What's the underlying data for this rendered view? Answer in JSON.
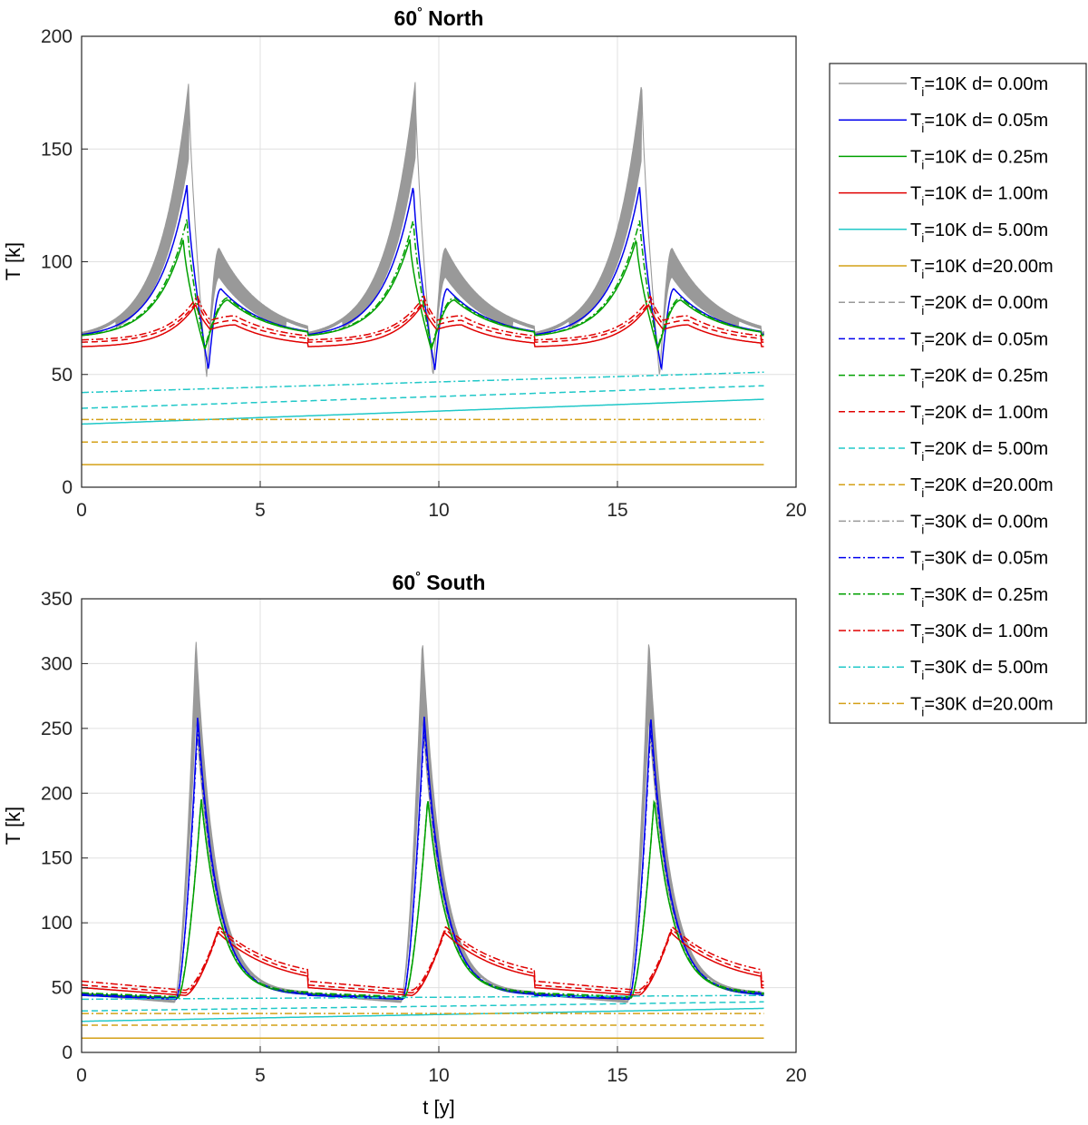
{
  "figure": {
    "xlabel": "t [y]",
    "ylabel": "T [k]"
  },
  "legend": {
    "location": "right",
    "entries": [
      {
        "ti": "i",
        "text_pre": "T",
        "text_post": "=10K d= 0.00m",
        "color": "#999999",
        "style": "solid"
      },
      {
        "ti": "i",
        "text_pre": "T",
        "text_post": "=10K d= 0.05m",
        "color": "#0000ee",
        "style": "solid"
      },
      {
        "ti": "i",
        "text_pre": "T",
        "text_post": "=10K d= 0.25m",
        "color": "#00a000",
        "style": "solid"
      },
      {
        "ti": "i",
        "text_pre": "T",
        "text_post": "=10K d= 1.00m",
        "color": "#e00000",
        "style": "solid"
      },
      {
        "ti": "i",
        "text_pre": "T",
        "text_post": "=10K d= 5.00m",
        "color": "#20c8c8",
        "style": "solid"
      },
      {
        "ti": "i",
        "text_pre": "T",
        "text_post": "=10K d=20.00m",
        "color": "#d4a017",
        "style": "solid"
      },
      {
        "ti": "i",
        "text_pre": "T",
        "text_post": "=20K d= 0.00m",
        "color": "#999999",
        "style": "dashed"
      },
      {
        "ti": "i",
        "text_pre": "T",
        "text_post": "=20K d= 0.05m",
        "color": "#0000ee",
        "style": "dashed"
      },
      {
        "ti": "i",
        "text_pre": "T",
        "text_post": "=20K d= 0.25m",
        "color": "#00a000",
        "style": "dashed"
      },
      {
        "ti": "i",
        "text_pre": "T",
        "text_post": "=20K d= 1.00m",
        "color": "#e00000",
        "style": "dashed"
      },
      {
        "ti": "i",
        "text_pre": "T",
        "text_post": "=20K d= 5.00m",
        "color": "#20c8c8",
        "style": "dashed"
      },
      {
        "ti": "i",
        "text_pre": "T",
        "text_post": "=20K d=20.00m",
        "color": "#d4a017",
        "style": "dashed"
      },
      {
        "ti": "i",
        "text_pre": "T",
        "text_post": "=30K d= 0.00m",
        "color": "#999999",
        "style": "dashdot"
      },
      {
        "ti": "i",
        "text_pre": "T",
        "text_post": "=30K d= 0.05m",
        "color": "#0000ee",
        "style": "dashdot"
      },
      {
        "ti": "i",
        "text_pre": "T",
        "text_post": "=30K d= 0.25m",
        "color": "#00a000",
        "style": "dashdot"
      },
      {
        "ti": "i",
        "text_pre": "T",
        "text_post": "=30K d= 1.00m",
        "color": "#e00000",
        "style": "dashdot"
      },
      {
        "ti": "i",
        "text_pre": "T",
        "text_post": "=30K d= 5.00m",
        "color": "#20c8c8",
        "style": "dashdot"
      },
      {
        "ti": "i",
        "text_pre": "T",
        "text_post": "=30K d=20.00m",
        "color": "#d4a017",
        "style": "dashdot"
      }
    ]
  },
  "chart_data": [
    {
      "type": "line",
      "title": "60° North",
      "title_main": "60",
      "title_deg": "°",
      "title_rest": " North",
      "xlabel": "",
      "ylabel": "T [k]",
      "xlim": [
        0,
        20
      ],
      "ylim": [
        0,
        200
      ],
      "xticks": [
        0,
        5,
        10,
        15,
        20
      ],
      "yticks": [
        0,
        50,
        100,
        150,
        200
      ],
      "grid": true,
      "period": 6.34,
      "t_end": 19.1,
      "surface_band": {
        "color": "#999999",
        "peaks": [
          [
            3.0,
            180
          ],
          [
            3.85,
            106
          ]
        ],
        "trough": [
          3.5,
          49
        ],
        "base": 66
      },
      "series": [
        {
          "name": "Ti=10K d=0.05m",
          "color": "#0000ee",
          "style": "solid",
          "peaks": [
            [
              2.95,
              134
            ],
            [
              3.9,
              88
            ]
          ],
          "trough": [
            3.55,
            52
          ],
          "base": 66
        },
        {
          "name": "Ti=10K d=0.25m",
          "color": "#00a000",
          "style": "solid",
          "peaks": [
            [
              2.85,
              110
            ],
            [
              4.1,
              83
            ]
          ],
          "trough": [
            3.45,
            61
          ],
          "base": 66
        },
        {
          "name": "Ti=10K d=1.00m",
          "color": "#e00000",
          "style": "solid",
          "peaks": [
            [
              3.2,
              81
            ],
            [
              4.3,
              72
            ]
          ],
          "trough": [
            3.6,
            70
          ],
          "base": 62
        },
        {
          "name": "Ti=10K d=5.00m",
          "color": "#20c8c8",
          "style": "solid",
          "start": 28,
          "end": 39
        },
        {
          "name": "Ti=10K d=20.00m",
          "color": "#d4a017",
          "style": "solid",
          "start": 10,
          "end": 10
        },
        {
          "name": "Ti=20K d=1.00m",
          "color": "#e00000",
          "style": "dashed",
          "peaks": [
            [
              3.25,
              83
            ],
            [
              4.3,
              74
            ]
          ],
          "trough": [
            3.6,
            72
          ],
          "base": 64
        },
        {
          "name": "Ti=20K d=5.00m",
          "color": "#20c8c8",
          "style": "dashed",
          "start": 35,
          "end": 45
        },
        {
          "name": "Ti=20K d=20.00m",
          "color": "#d4a017",
          "style": "dashed",
          "start": 20,
          "end": 20
        },
        {
          "name": "Ti=30K d=0.25m",
          "color": "#00a000",
          "style": "dashdot",
          "peaks": [
            [
              2.95,
              119
            ],
            [
              4.1,
              84
            ]
          ],
          "trough": [
            3.45,
            62
          ],
          "base": 66
        },
        {
          "name": "Ti=30K d=1.00m",
          "color": "#e00000",
          "style": "dashdot",
          "peaks": [
            [
              3.25,
              85
            ],
            [
              4.3,
              76
            ]
          ],
          "trough": [
            3.6,
            74
          ],
          "base": 65
        },
        {
          "name": "Ti=30K d=5.00m",
          "color": "#20c8c8",
          "style": "dashdot",
          "start": 42,
          "end": 51
        },
        {
          "name": "Ti=30K d=20.00m",
          "color": "#d4a017",
          "style": "dashdot",
          "start": 30,
          "end": 30
        }
      ]
    },
    {
      "type": "line",
      "title": "60° South",
      "title_main": "60",
      "title_deg": "°",
      "title_rest": " South",
      "xlabel": "t [y]",
      "ylabel": "T [k]",
      "xlim": [
        0,
        20
      ],
      "ylim": [
        0,
        350
      ],
      "xticks": [
        0,
        5,
        10,
        15,
        20
      ],
      "yticks": [
        0,
        50,
        100,
        150,
        200,
        250,
        300,
        350
      ],
      "grid": true,
      "period": 6.34,
      "t_end": 19.1,
      "surface_band": {
        "color": "#999999",
        "peaks": [
          [
            3.2,
            319
          ]
        ],
        "rise": 2.6,
        "base": 40,
        "start": 46
      },
      "series": [
        {
          "name": "Ti=10K d=0.05m",
          "color": "#0000ee",
          "style": "solid",
          "peaks": [
            [
              3.25,
              260
            ]
          ],
          "rise": 2.65,
          "base": 41,
          "start": 44
        },
        {
          "name": "Ti=10K d=0.25m",
          "color": "#00a000",
          "style": "solid",
          "peaks": [
            [
              3.35,
              196
            ]
          ],
          "rise": 2.7,
          "base": 42,
          "start": 45
        },
        {
          "name": "Ti=10K d=1.00m",
          "color": "#e00000",
          "style": "solid",
          "peaks": [
            [
              3.8,
              93
            ]
          ],
          "rise": 2.9,
          "base": 44,
          "start": 50
        },
        {
          "name": "Ti=10K d=5.00m",
          "color": "#20c8c8",
          "style": "solid",
          "start": 24,
          "end": 34
        },
        {
          "name": "Ti=10K d=20.00m",
          "color": "#d4a017",
          "style": "solid",
          "start": 11,
          "end": 11
        },
        {
          "name": "Ti=20K d=1.00m",
          "color": "#e00000",
          "style": "dashed",
          "peaks": [
            [
              3.85,
              95
            ]
          ],
          "rise": 2.9,
          "base": 46,
          "start": 52
        },
        {
          "name": "Ti=20K d=5.00m",
          "color": "#20c8c8",
          "style": "dashed",
          "start": 32,
          "end": 39
        },
        {
          "name": "Ti=20K d=20.00m",
          "color": "#d4a017",
          "style": "dashed",
          "start": 21,
          "end": 21
        },
        {
          "name": "Ti=30K d=0.05m",
          "color": "#0000ee",
          "style": "dashdot",
          "peaks": [
            [
              3.25,
              252
            ]
          ],
          "rise": 2.65,
          "base": 42,
          "start": 45
        },
        {
          "name": "Ti=30K d=0.25m",
          "color": "#00a000",
          "style": "dashdot",
          "peaks": [
            [
              3.35,
              196
            ]
          ],
          "rise": 2.7,
          "base": 43,
          "start": 46
        },
        {
          "name": "Ti=30K d=1.00m",
          "color": "#e00000",
          "style": "dashdot",
          "peaks": [
            [
              3.85,
              97
            ]
          ],
          "rise": 2.9,
          "base": 48,
          "start": 55
        },
        {
          "name": "Ti=30K d=5.00m",
          "color": "#20c8c8",
          "style": "dashdot",
          "start": 41,
          "end": 44
        },
        {
          "name": "Ti=30K d=20.00m",
          "color": "#d4a017",
          "style": "dashdot",
          "start": 30,
          "end": 30
        }
      ]
    }
  ]
}
